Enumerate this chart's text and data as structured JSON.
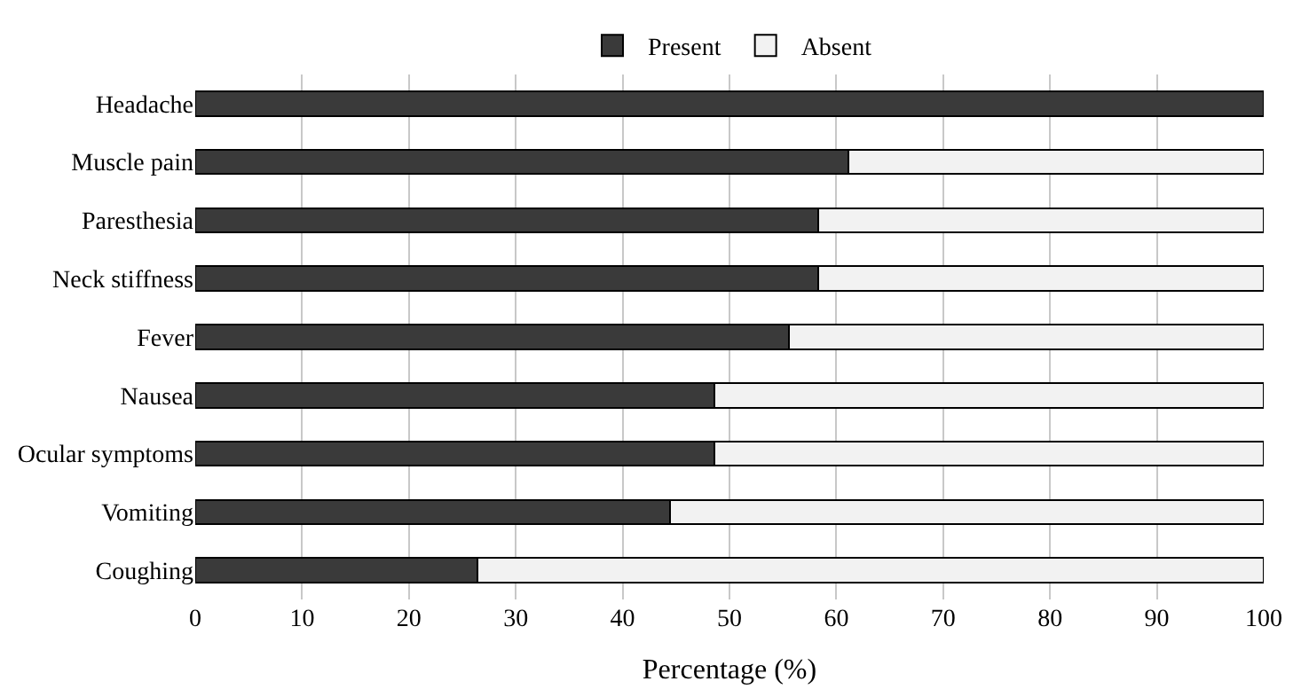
{
  "chart_data": {
    "type": "bar",
    "orientation": "horizontal",
    "stacked": true,
    "categories": [
      "Headache",
      "Muscle pain",
      "Paresthesia",
      "Neck stiffness",
      "Fever",
      "Nausea",
      "Ocular symptoms",
      "Vomiting",
      "Coughing"
    ],
    "series": [
      {
        "name": "Present",
        "color": "#3a3a3a",
        "values": [
          100,
          61.1,
          58.3,
          58.3,
          55.6,
          48.6,
          48.6,
          44.4,
          26.4
        ]
      },
      {
        "name": "Absent",
        "color": "#f2f2f2",
        "values": [
          null,
          38.9,
          41.7,
          41.7,
          44.4,
          51.4,
          51.4,
          55.6,
          73.6
        ]
      }
    ],
    "xlabel": "Percentage (%)",
    "xlim": [
      0,
      100
    ],
    "xticks": [
      0,
      10,
      20,
      30,
      40,
      50,
      60,
      70,
      80,
      90,
      100
    ],
    "grid": "x",
    "legend": "top"
  }
}
